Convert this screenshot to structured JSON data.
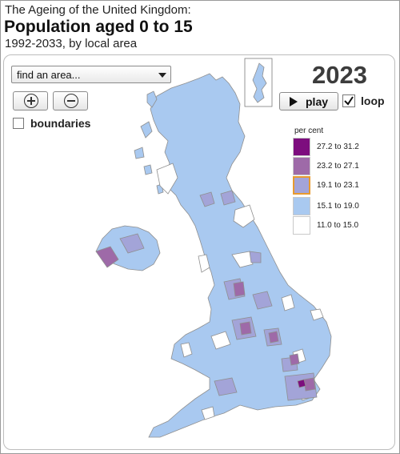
{
  "header": {
    "title_line1": "The Ageing of the United Kingdom:",
    "title_line2": "Population aged 0 to 15",
    "subtitle": "1992-2033, by local area"
  },
  "controls": {
    "search_value": "find an area...",
    "zoom_in_icon": "zoom-in-icon",
    "zoom_out_icon": "zoom-out-icon",
    "boundaries_label": "boundaries",
    "boundaries_checked": false,
    "year": "2023",
    "play_label": "play",
    "loop_label": "loop",
    "loop_checked": true
  },
  "legend": {
    "title": "per cent",
    "items": [
      {
        "label": "27.2 to 31.2",
        "color": "#7d0d7e"
      },
      {
        "label": "23.2 to 27.1",
        "color": "#9e6aa8"
      },
      {
        "label": "19.1 to 23.1",
        "color": "#a3a4d8",
        "selected": true
      },
      {
        "label": "15.1 to 19.0",
        "color": "#a9c9f0"
      },
      {
        "label": "11.0 to 15.0",
        "color": "#ffffff"
      }
    ]
  },
  "map_colors": {
    "base": "#a9c9f0",
    "mid": "#a3a4d8",
    "high": "#9e6aa8",
    "highest": "#7d0d7e",
    "low": "#ffffff",
    "outline": "#8f8f8f"
  }
}
